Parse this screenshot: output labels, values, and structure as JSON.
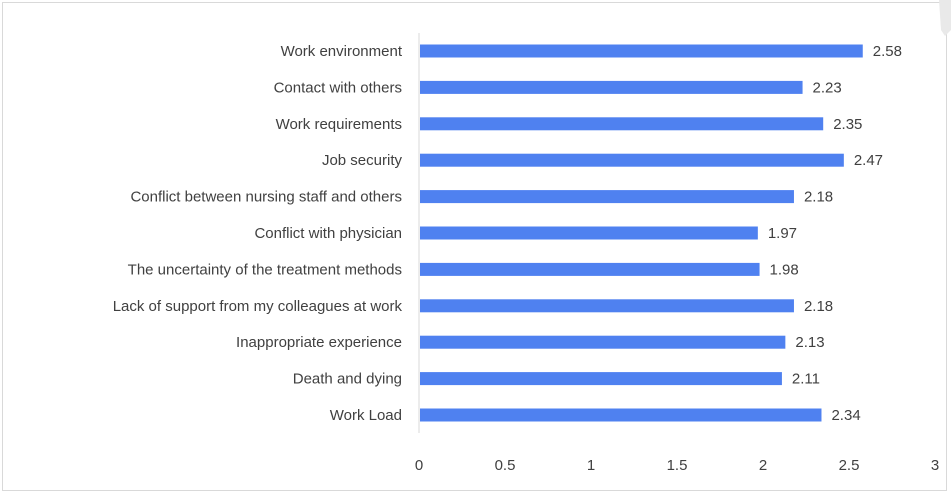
{
  "chart_data": {
    "type": "bar",
    "orientation": "horizontal",
    "categories": [
      "Work environment",
      "Contact with others",
      "Work requirements",
      "Job security",
      "Conflict between nursing staff and others",
      "Conflict with physician",
      "The uncertainty of the treatment methods",
      "Lack of support from my colleagues at work",
      "Inappropriate experience",
      "Death and dying",
      "Work Load"
    ],
    "values": [
      2.58,
      2.23,
      2.35,
      2.47,
      2.18,
      1.97,
      1.98,
      2.18,
      2.13,
      2.11,
      2.34
    ],
    "value_labels": [
      "2.58",
      "2.23",
      "2.35",
      "2.47",
      "2.18",
      "1.97",
      "1.98",
      "2.18",
      "2.13",
      "2.11",
      "2.34"
    ],
    "xlim": [
      0,
      3
    ],
    "x_ticks": [
      "0",
      "0.5",
      "1",
      "1.5",
      "2",
      "2.5",
      "3"
    ],
    "x_tick_values": [
      0,
      0.5,
      1,
      1.5,
      2,
      2.5,
      3
    ],
    "title": "",
    "xlabel": "",
    "ylabel": "",
    "grid": false,
    "legend": "none",
    "bar_color": "#4f81f0"
  }
}
